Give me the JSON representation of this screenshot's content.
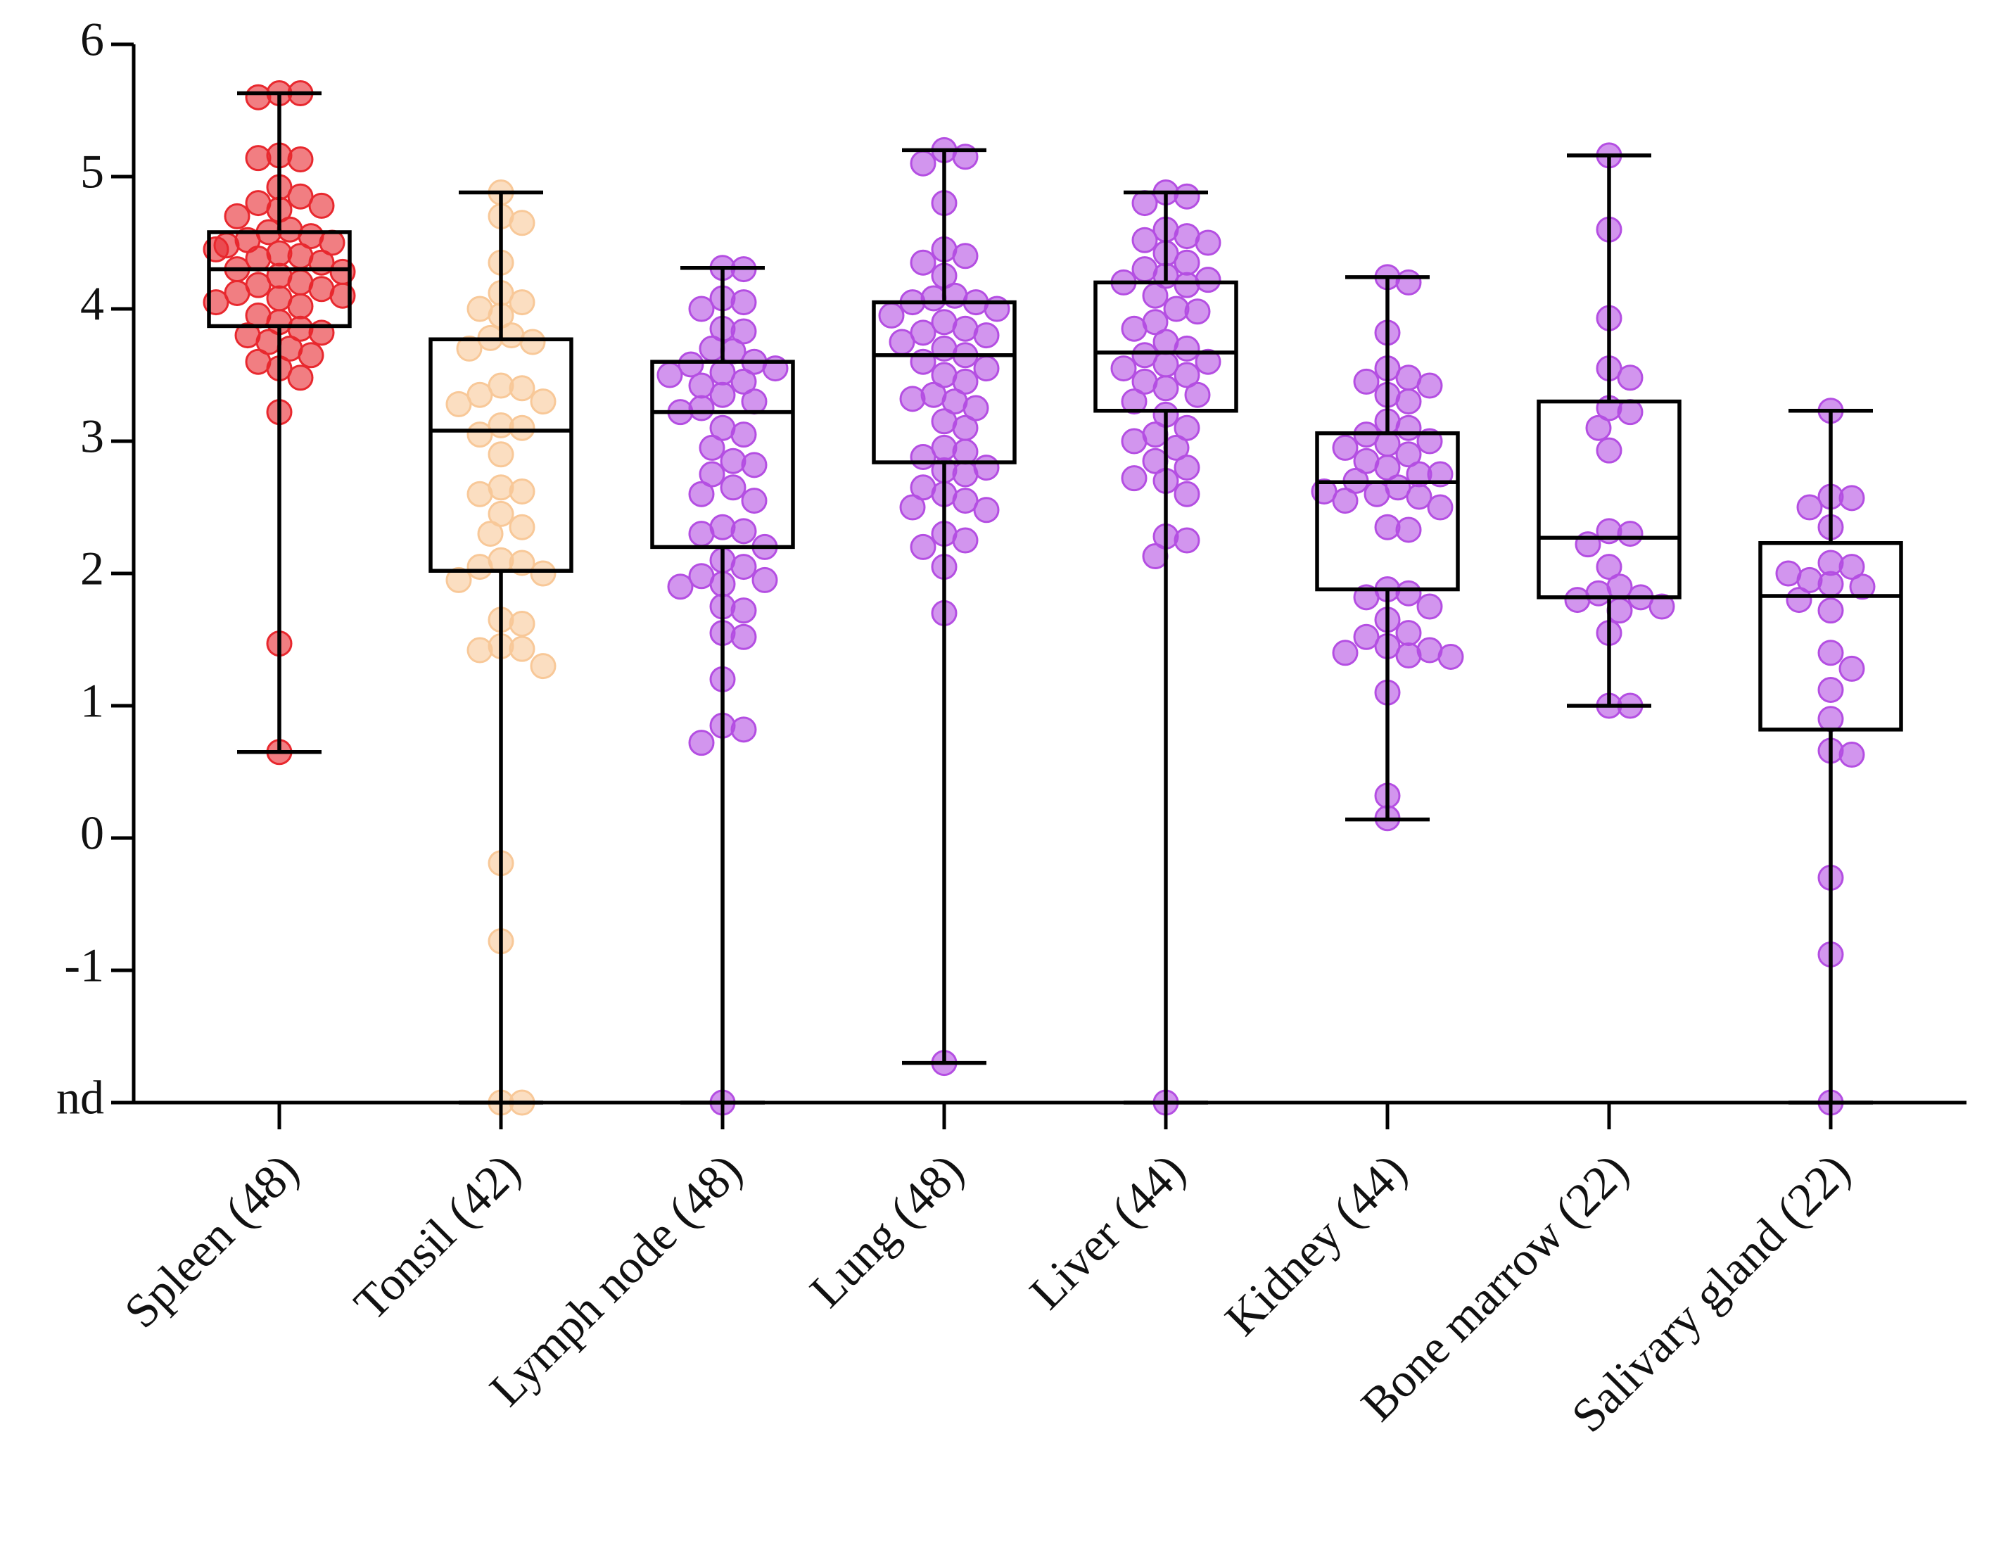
{
  "chart_data": {
    "type": "box",
    "categories": [
      "Spleen (48)",
      "Tonsil (42)",
      "Lymph node (48)",
      "Lung (48)",
      "Liver (44)",
      "Kidney (44)",
      "Bone marrow (22)",
      "Salivary gland (22)"
    ],
    "colors": [
      "#e8282e",
      "#f8c898",
      "#b44ee2",
      "#b44ee2",
      "#b44ee2",
      "#b44ee2",
      "#b44ee2",
      "#b44ee2"
    ],
    "ylim": [
      -2,
      6
    ],
    "yticks": [
      {
        "value": -2,
        "label": "nd"
      },
      -1,
      0,
      1,
      2,
      3,
      4,
      5,
      6
    ],
    "boxes": [
      {
        "min": 0.65,
        "q1": 3.87,
        "median": 4.3,
        "q3": 4.58,
        "max": 5.63,
        "points": [
          5.63,
          5.63,
          5.6,
          5.16,
          5.13,
          5.14,
          4.92,
          4.85,
          4.8,
          4.78,
          4.75,
          4.7,
          4.6,
          4.58,
          4.55,
          4.52,
          4.5,
          4.48,
          4.45,
          4.42,
          4.4,
          4.38,
          4.35,
          4.3,
          4.28,
          4.25,
          4.2,
          4.18,
          4.15,
          4.12,
          4.1,
          4.08,
          4.05,
          4.02,
          3.95,
          3.9,
          3.85,
          3.82,
          3.8,
          3.75,
          3.7,
          3.65,
          3.6,
          3.55,
          3.48,
          3.22,
          1.47,
          0.65
        ]
      },
      {
        "min": -2,
        "q1": 2.02,
        "median": 3.08,
        "q3": 3.77,
        "max": 4.88,
        "points": [
          4.88,
          4.7,
          4.65,
          4.35,
          4.12,
          4.05,
          4.0,
          3.95,
          3.8,
          3.78,
          3.75,
          3.7,
          3.42,
          3.4,
          3.35,
          3.3,
          3.28,
          3.12,
          3.1,
          3.05,
          2.9,
          2.65,
          2.62,
          2.6,
          2.45,
          2.35,
          2.3,
          2.1,
          2.08,
          2.05,
          2.0,
          1.95,
          1.65,
          1.62,
          1.45,
          1.43,
          1.42,
          1.3,
          -0.19,
          -0.78,
          -2,
          -2
        ]
      },
      {
        "min": -2,
        "q1": 2.2,
        "median": 3.22,
        "q3": 3.6,
        "max": 4.31,
        "points": [
          4.31,
          4.3,
          4.08,
          4.05,
          4.0,
          3.85,
          3.83,
          3.7,
          3.68,
          3.6,
          3.58,
          3.55,
          3.52,
          3.5,
          3.45,
          3.42,
          3.35,
          3.3,
          3.25,
          3.22,
          3.1,
          3.05,
          2.95,
          2.85,
          2.82,
          2.75,
          2.65,
          2.6,
          2.55,
          2.35,
          2.32,
          2.3,
          2.1,
          2.05,
          1.98,
          1.95,
          1.92,
          1.9,
          1.75,
          1.72,
          1.55,
          1.52,
          1.2,
          0.85,
          0.82,
          0.72,
          -2,
          2.2
        ]
      },
      {
        "min": -1.7,
        "q1": 2.84,
        "median": 3.65,
        "q3": 4.05,
        "max": 5.2,
        "points": [
          5.2,
          5.15,
          5.1,
          4.8,
          4.45,
          4.4,
          4.35,
          4.25,
          4.1,
          4.08,
          4.05,
          4.05,
          4.0,
          3.95,
          3.9,
          3.85,
          3.82,
          3.8,
          3.75,
          3.7,
          3.65,
          3.6,
          3.55,
          3.5,
          3.45,
          3.35,
          3.32,
          3.3,
          3.25,
          3.15,
          2.95,
          2.92,
          2.88,
          2.8,
          2.78,
          2.75,
          2.65,
          2.6,
          2.55,
          2.5,
          2.48,
          2.3,
          2.25,
          2.2,
          2.05,
          1.7,
          -1.7,
          3.1
        ]
      },
      {
        "min": -2,
        "q1": 3.23,
        "median": 3.67,
        "q3": 4.2,
        "max": 4.88,
        "points": [
          4.88,
          4.85,
          4.8,
          4.6,
          4.55,
          4.52,
          4.5,
          4.42,
          4.35,
          4.3,
          4.25,
          4.22,
          4.2,
          4.18,
          4.1,
          4.0,
          3.98,
          3.9,
          3.85,
          3.75,
          3.7,
          3.65,
          3.6,
          3.58,
          3.55,
          3.5,
          3.45,
          3.4,
          3.35,
          3.3,
          3.2,
          3.1,
          3.05,
          3.0,
          2.95,
          2.85,
          2.8,
          2.72,
          2.7,
          2.6,
          2.28,
          2.25,
          2.13,
          -2
        ]
      },
      {
        "min": 0.14,
        "q1": 1.88,
        "median": 2.69,
        "q3": 3.06,
        "max": 4.24,
        "points": [
          4.24,
          4.2,
          3.82,
          3.55,
          3.48,
          3.45,
          3.42,
          3.35,
          3.3,
          3.15,
          3.1,
          3.05,
          3.0,
          2.98,
          2.95,
          2.9,
          2.85,
          2.8,
          2.75,
          2.7,
          2.65,
          2.6,
          2.58,
          2.55,
          2.5,
          2.35,
          2.33,
          1.88,
          1.85,
          1.82,
          1.75,
          1.65,
          1.55,
          1.52,
          1.45,
          1.42,
          1.4,
          1.38,
          1.37,
          1.1,
          0.32,
          0.15,
          2.62,
          2.75
        ]
      },
      {
        "min": 1.0,
        "q1": 1.82,
        "median": 2.27,
        "q3": 3.3,
        "max": 5.16,
        "points": [
          5.16,
          4.6,
          3.93,
          3.55,
          3.48,
          3.25,
          3.22,
          3.1,
          2.93,
          2.32,
          2.3,
          2.22,
          2.05,
          1.9,
          1.85,
          1.82,
          1.8,
          1.75,
          1.72,
          1.55,
          1.0,
          1.0
        ]
      },
      {
        "min": -2,
        "q1": 0.82,
        "median": 1.83,
        "q3": 2.23,
        "max": 3.23,
        "points": [
          3.23,
          2.58,
          2.57,
          2.5,
          2.35,
          2.08,
          2.05,
          1.95,
          1.92,
          1.9,
          1.8,
          1.72,
          1.4,
          1.28,
          1.12,
          0.9,
          0.66,
          0.63,
          -0.3,
          -0.88,
          -2,
          2.0
        ]
      }
    ]
  }
}
